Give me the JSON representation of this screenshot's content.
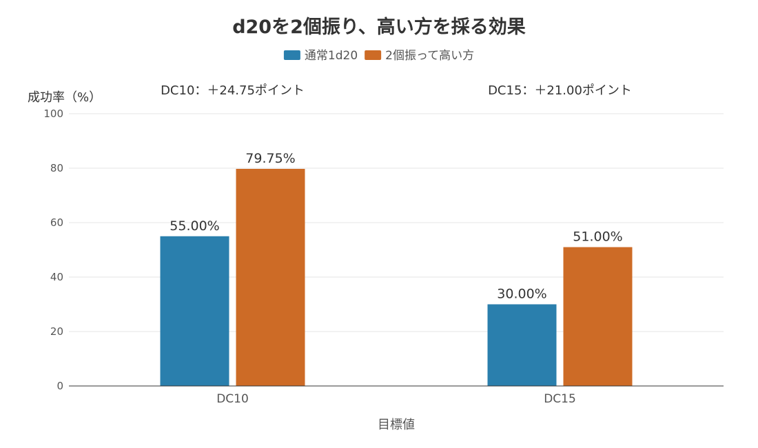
{
  "chart_data": {
    "type": "bar",
    "title": "d20を2個振り、高い方を採る効果",
    "xlabel": "目標値",
    "ylabel": "成功率（%）",
    "categories": [
      "DC10",
      "DC15"
    ],
    "series": [
      {
        "name": "通常1d20",
        "values": [
          55.0,
          30.0
        ],
        "labels": [
          "55.00%",
          "30.00%"
        ],
        "color": "#2a7fad"
      },
      {
        "name": "2個振って高い方",
        "values": [
          79.75,
          51.0
        ],
        "labels": [
          "79.75%",
          "51.00%"
        ],
        "color": "#cd6b26"
      }
    ],
    "ylim": [
      0,
      100
    ],
    "yticks": [
      0,
      20,
      40,
      60,
      80,
      100
    ],
    "grid": true,
    "legend": "top-center",
    "annotations": [
      {
        "category": "DC10",
        "text": "DC10：＋24.75ポイント"
      },
      {
        "category": "DC15",
        "text": "DC15：＋21.00ポイント"
      }
    ]
  }
}
